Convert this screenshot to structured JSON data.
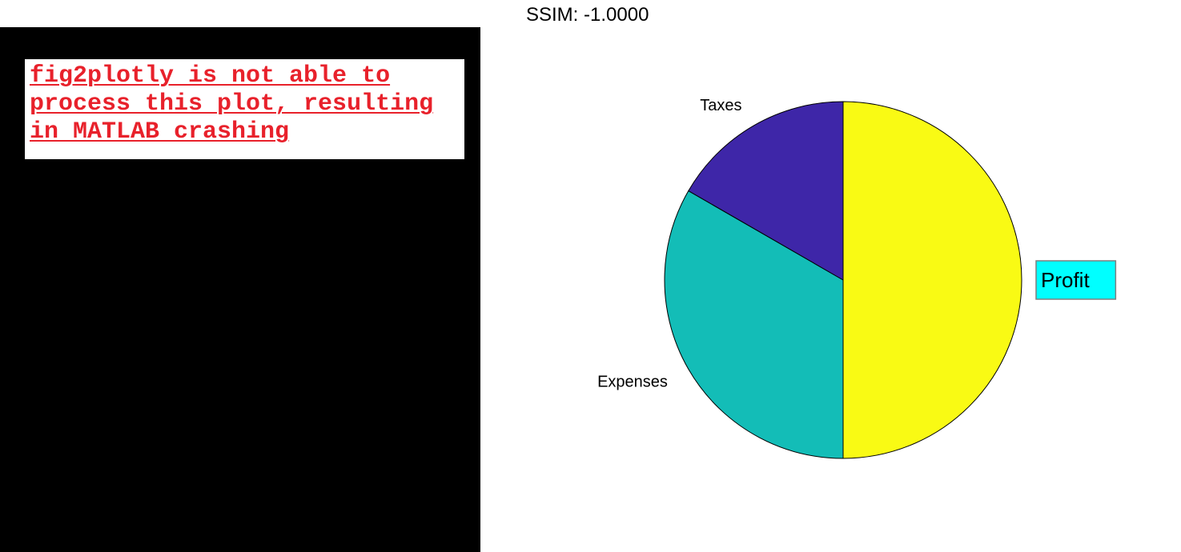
{
  "title": "SSIM: -1.0000",
  "error_message": {
    "lines": [
      "fig2plotly is not able to",
      "process this plot, resulting",
      "in MATLAB crashing"
    ],
    "color": "#e8212b"
  },
  "chart_data": {
    "type": "pie",
    "title": "",
    "slices": [
      {
        "label": "Profit",
        "value": 50,
        "color": "#f9fa14",
        "boxed": true,
        "box_color": "#00ffff"
      },
      {
        "label": "Expenses",
        "value": 33.33,
        "color": "#13bdb7",
        "boxed": false
      },
      {
        "label": "Taxes",
        "value": 16.67,
        "color": "#3e26a8",
        "boxed": false
      }
    ],
    "start_angle_deg": 90,
    "direction": "clockwise",
    "legend": "none",
    "grid": false
  }
}
